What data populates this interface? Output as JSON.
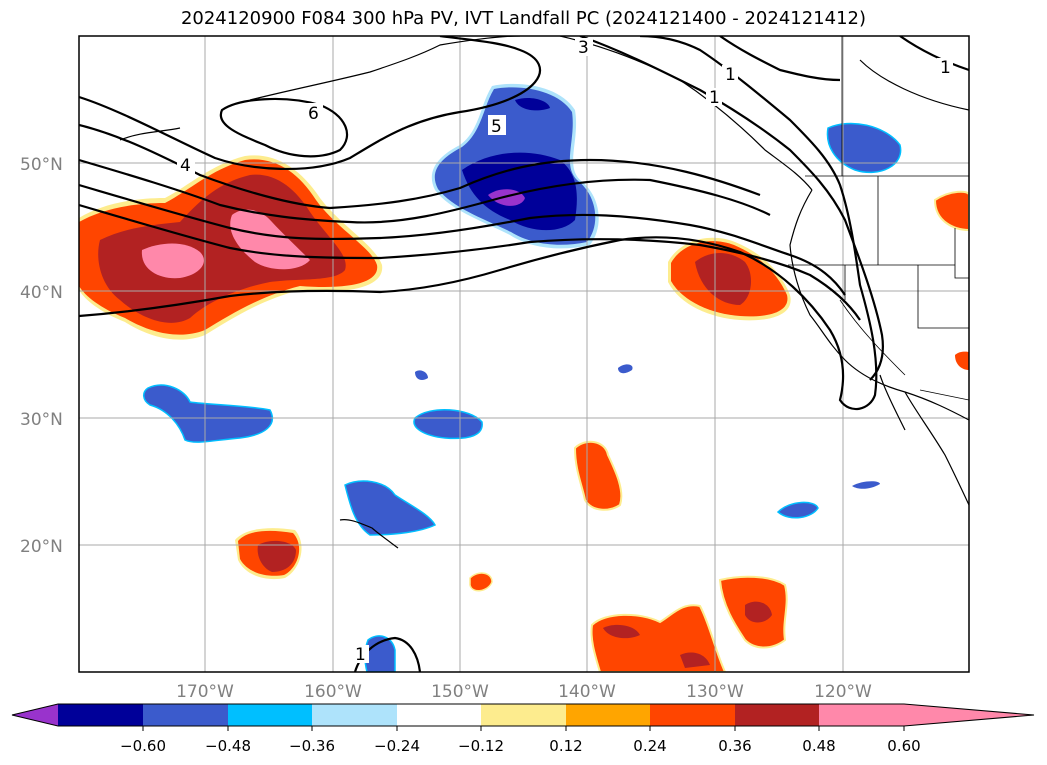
{
  "title": "2024120900 F084 300 hPa PV, IVT Landfall PC (2024121400 - 2024121412)",
  "map": {
    "lat_labels": [
      "50°N",
      "40°N",
      "30°N",
      "20°N"
    ],
    "lon_labels": [
      "170°W",
      "160°W",
      "150°W",
      "140°W",
      "130°W",
      "120°W"
    ],
    "contour_labels": [
      "6",
      "5",
      "4",
      "3",
      "1",
      "1",
      "1",
      "1"
    ],
    "colors": {
      "c_neg_060": "#9933cc",
      "c_neg_048": "#000099",
      "c_neg_036": "#3b5bcc",
      "c_neg_024": "#00bfff",
      "c_neg_012": "#aee3fb",
      "c_pos_012": "#fdec8e",
      "c_pos_024": "#ffa500",
      "c_pos_036": "#ff4500",
      "c_pos_048": "#b22222",
      "c_pos_060": "#ff88aa",
      "grid": "#a9a9a9"
    }
  },
  "colorbar": {
    "ticks": [
      "−0.60",
      "−0.48",
      "−0.36",
      "−0.24",
      "−0.12",
      "0.12",
      "0.24",
      "0.36",
      "0.48",
      "0.60"
    ],
    "segments": [
      "#9933cc",
      "#000099",
      "#3b5bcc",
      "#00bfff",
      "#aee3fb",
      "#ffffff",
      "#fdec8e",
      "#ffa500",
      "#ff4500",
      "#b22222",
      "#ff88aa"
    ]
  }
}
